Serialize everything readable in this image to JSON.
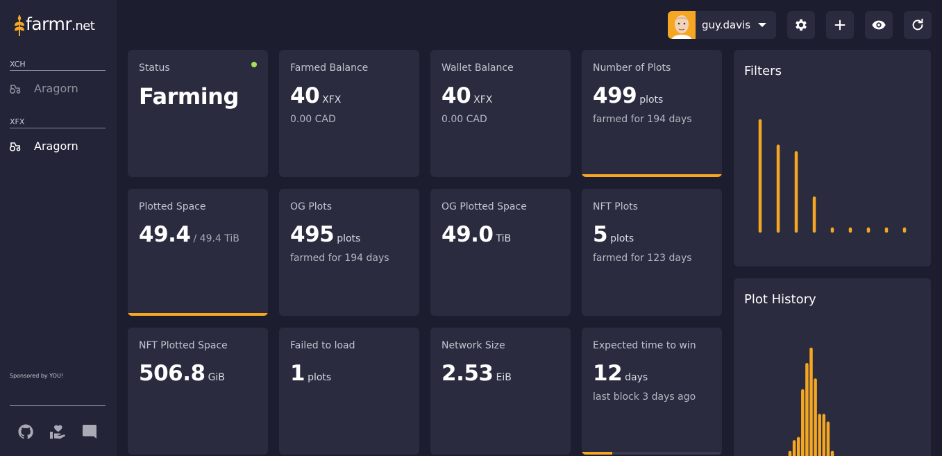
{
  "app": {
    "logo_text": "farmr",
    "logo_suffix": ".net"
  },
  "sidebar": {
    "sections": [
      {
        "label": "XCH",
        "items": [
          {
            "label": "Aragorn",
            "active": false
          }
        ]
      },
      {
        "label": "XFX",
        "items": [
          {
            "label": "Aragorn",
            "active": true
          }
        ]
      }
    ],
    "sponsor_text": "Sponsored by YOU!",
    "social_icons": [
      "github-icon",
      "donate-icon",
      "discord-icon"
    ]
  },
  "header": {
    "user_name": "guy.davis",
    "buttons": [
      "settings-icon",
      "add-icon",
      "eye-icon",
      "refresh-icon"
    ]
  },
  "cards": [
    {
      "id": "status",
      "label": "Status",
      "value": "Farming",
      "unit": "",
      "sub": "",
      "indicator_color": "#a6e057"
    },
    {
      "id": "farmed-balance",
      "label": "Farmed Balance",
      "value": "40",
      "unit": "XFX",
      "sub": "0.00 CAD"
    },
    {
      "id": "wallet-balance",
      "label": "Wallet Balance",
      "value": "40",
      "unit": "XFX",
      "sub": "0.00 CAD"
    },
    {
      "id": "number-of-plots",
      "label": "Number of Plots",
      "value": "499",
      "unit": "plots",
      "sub": "farmed for 194 days",
      "progress": 1.0
    },
    {
      "id": "plotted-space",
      "label": "Plotted Space",
      "value": "49.4",
      "unit": "/ 49.4 TiB",
      "sub": "",
      "progress": 1.0
    },
    {
      "id": "og-plots",
      "label": "OG Plots",
      "value": "495",
      "unit": "plots",
      "sub": "farmed for 194 days"
    },
    {
      "id": "og-plotted-space",
      "label": "OG Plotted Space",
      "value": "49.0",
      "unit": "TiB",
      "sub": ""
    },
    {
      "id": "nft-plots",
      "label": "NFT Plots",
      "value": "5",
      "unit": "plots",
      "sub": "farmed for 123 days"
    },
    {
      "id": "nft-plotted-space",
      "label": "NFT Plotted Space",
      "value": "506.8",
      "unit": "GiB",
      "sub": ""
    },
    {
      "id": "failed-to-load",
      "label": "Failed to load",
      "value": "1",
      "unit": "plots",
      "sub": ""
    },
    {
      "id": "network-size",
      "label": "Network Size",
      "value": "2.53",
      "unit": "EiB",
      "sub": ""
    },
    {
      "id": "expected-time-to-win",
      "label": "Expected time to win",
      "value": "12",
      "unit": "days",
      "sub": "last block 3 days ago",
      "progress": 0.22
    }
  ],
  "filters_panel": {
    "title": "Filters"
  },
  "plot_history_panel": {
    "title": "Plot History"
  },
  "chart_data": [
    {
      "type": "bar",
      "title": "Filters",
      "values": [
        100,
        77,
        71,
        30,
        2,
        2,
        2,
        2,
        2
      ],
      "ylim": [
        0,
        100
      ],
      "color": "#f5a623"
    },
    {
      "type": "bar",
      "title": "Plot History",
      "values": [
        5,
        12,
        14,
        45,
        62,
        72,
        52,
        29,
        29,
        24,
        5
      ],
      "ylim": [
        0,
        72
      ],
      "color": "#f5a623"
    }
  ],
  "colors": {
    "accent": "#f5a623",
    "background": "#1c1d2e",
    "card": "#2a2b3e",
    "sidebar": "#232437"
  }
}
